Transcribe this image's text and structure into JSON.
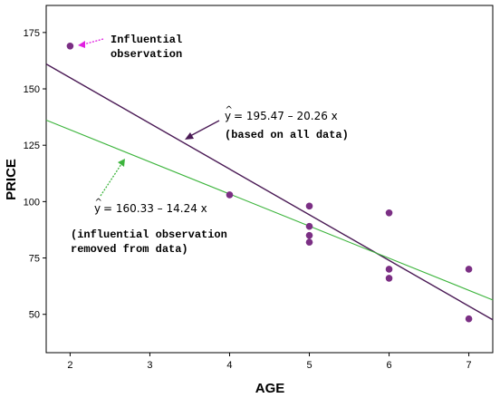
{
  "chart_data": {
    "type": "scatter",
    "xlabel": "AGE",
    "ylabel": "PRICE",
    "xlim": [
      1.7,
      7.3
    ],
    "ylim": [
      33,
      187
    ],
    "x_ticks": [
      2,
      3,
      4,
      5,
      6,
      7
    ],
    "y_ticks": [
      50,
      75,
      100,
      125,
      150,
      175
    ],
    "grid": false,
    "colors": {
      "points": "#7b2f84",
      "line_all": "#4a1a55",
      "line_removed": "#3cb43c",
      "arrow_influential": "#e020e0",
      "arrow_all": "#4a1a55",
      "arrow_removed": "#3cb43c"
    },
    "points": [
      {
        "x": 2,
        "y": 169
      },
      {
        "x": 4,
        "y": 103
      },
      {
        "x": 5,
        "y": 98
      },
      {
        "x": 5,
        "y": 89
      },
      {
        "x": 5,
        "y": 85
      },
      {
        "x": 5,
        "y": 82
      },
      {
        "x": 6,
        "y": 95
      },
      {
        "x": 6,
        "y": 70
      },
      {
        "x": 6,
        "y": 66
      },
      {
        "x": 7,
        "y": 70
      },
      {
        "x": 7,
        "y": 48
      }
    ],
    "lines": [
      {
        "intercept": 195.47,
        "slope": -20.26,
        "color_key": "line_all"
      },
      {
        "intercept": 160.33,
        "slope": -14.24,
        "color_key": "line_removed"
      }
    ],
    "annotations": {
      "influential": {
        "line1": "Influential",
        "line2": "observation"
      },
      "all_data": {
        "yhat": "y",
        "formula": "= 195.47 – 20.26 x",
        "note": "(based on all data)"
      },
      "removed": {
        "yhat": "y",
        "formula": "= 160.33 – 14.24 x",
        "note1": "(influential observation",
        "note2": "removed from data)"
      }
    }
  }
}
